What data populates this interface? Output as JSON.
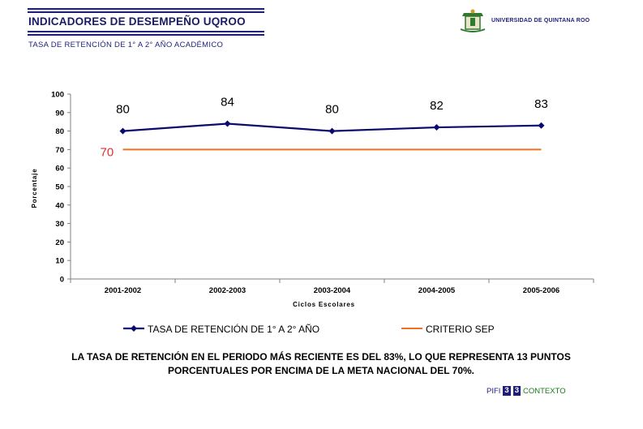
{
  "header": {
    "title": "INDICADORES DE DESEMPEÑO UQROO",
    "subtitle": "TASA DE RETENCIÓN DE 1° A 2° AÑO ACADÉMICO",
    "university": "UNIVERSIDAD DE QUINTANA ROO"
  },
  "chart_data": {
    "type": "line",
    "categories": [
      "2001-2002",
      "2002-2003",
      "2003-2004",
      "2004-2005",
      "2005-2006"
    ],
    "series": [
      {
        "name": "TASA DE RETENCIÓN DE 1° A 2° AÑO",
        "values": [
          80,
          84,
          80,
          82,
          83
        ],
        "color": "#0a0a6e",
        "marker": "diamond"
      },
      {
        "name": "CRITERIO SEP",
        "values": [
          70,
          70,
          70,
          70,
          70
        ],
        "color": "#f07020"
      }
    ],
    "data_labels": [
      "80",
      "84",
      "80",
      "82",
      "83"
    ],
    "criterion_label": "70",
    "xlabel": "Ciclos Escolares",
    "ylabel": "Porcentaje",
    "ylim": [
      0,
      100
    ],
    "yticks": [
      0,
      10,
      20,
      30,
      40,
      50,
      60,
      70,
      80,
      90,
      100
    ],
    "grid": false,
    "legend_position": "bottom"
  },
  "summary": "LA TASA DE RETENCIÓN EN EL PERIODO MÁS RECIENTE ES DEL 83%, LO QUE REPRESENTA 13 PUNTOS PORCENTUALES POR ENCIMA DE LA META NACIONAL DEL 70%.",
  "footer": {
    "pifi": "PIFI",
    "box1": "3",
    "box2": "3",
    "context": "CONTEXTO"
  },
  "colors": {
    "brand": "#1f1f7a",
    "series": "#0a0a6e",
    "criterion": "#f07020",
    "footer_text": "#1a7a1a"
  }
}
